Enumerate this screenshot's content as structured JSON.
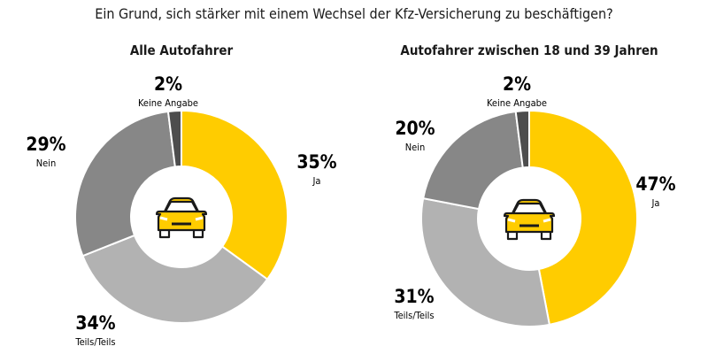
{
  "chart_data": [
    {
      "type": "donut",
      "title": "Alle Autofahrer",
      "categories": [
        "Ja",
        "Teils/Teils",
        "Nein",
        "Keine Angabe"
      ],
      "values": [
        35,
        34,
        29,
        2
      ],
      "labels": [
        "35%",
        "34%",
        "29%",
        "2%"
      ],
      "colors": [
        "#FFCC00",
        "#B2B2B2",
        "#878787",
        "#4D4D4D"
      ]
    },
    {
      "type": "donut",
      "title": "Autofahrer zwischen 18 und 39 Jahren",
      "categories": [
        "Ja",
        "Teils/Teils",
        "Nein",
        "Keine Angabe"
      ],
      "values": [
        47,
        31,
        20,
        2
      ],
      "labels": [
        "47%",
        "31%",
        "20%",
        "2%"
      ],
      "colors": [
        "#FFCC00",
        "#B2B2B2",
        "#878787",
        "#4D4D4D"
      ]
    }
  ],
  "title": "Ein Grund, sich stärker mit einem Wechsel der Kfz-Versicherung zu beschäftigen?",
  "center_icon": "car-icon"
}
